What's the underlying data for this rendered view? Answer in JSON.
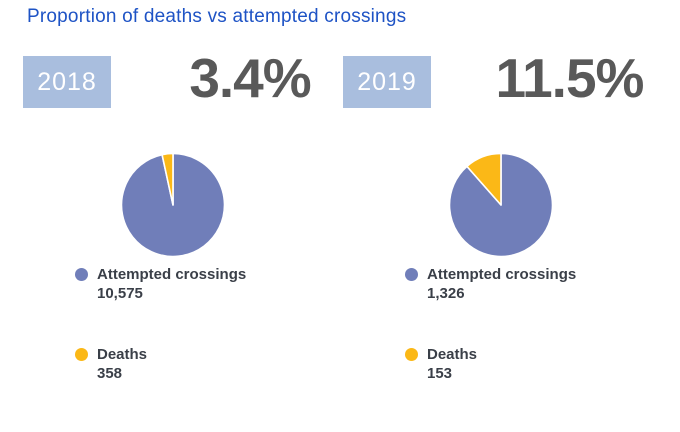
{
  "title": "Proportion of deaths vs attempted crossings",
  "colors": {
    "crossings": "#707EB9",
    "deaths": "#FBB817",
    "title": "#1E53C5",
    "year_badge_bg": "#A9BEDE",
    "percent_text": "#595959",
    "legend_text": "#3A3F48"
  },
  "chart_data": [
    {
      "type": "pie",
      "year": "2018",
      "proportion_label": "3.4%",
      "percent_value": 3.4,
      "legend_position": "below",
      "slices": [
        {
          "label": "Attempted crossings",
          "value": 10575,
          "value_display": "10,575",
          "color_key": "crossings"
        },
        {
          "label": "Deaths",
          "value": 358,
          "value_display": "358",
          "color_key": "deaths"
        }
      ]
    },
    {
      "type": "pie",
      "year": "2019",
      "proportion_label": "11.5%",
      "percent_value": 11.5,
      "legend_position": "below",
      "slices": [
        {
          "label": "Attempted crossings",
          "value": 1326,
          "value_display": "1,326",
          "color_key": "crossings"
        },
        {
          "label": "Deaths",
          "value": 153,
          "value_display": "153",
          "color_key": "deaths"
        }
      ]
    }
  ]
}
